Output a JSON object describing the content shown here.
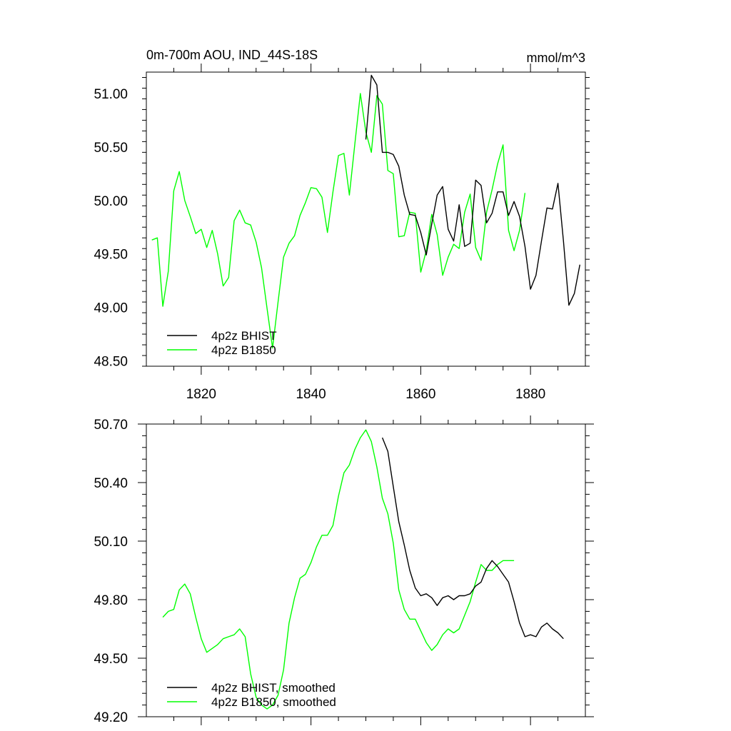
{
  "chart_data": [
    {
      "type": "line",
      "title_left": "0m-700m AOU, IND_44S-18S",
      "title_right": "mmol/m^3",
      "xlim": [
        1810,
        1890
      ],
      "ylim": [
        48.45,
        51.2
      ],
      "x_ticks": [
        1820,
        1840,
        1860,
        1880
      ],
      "x_tick_labels": [
        "1820",
        "1840",
        "1860",
        "1880"
      ],
      "y_ticks": [
        48.5,
        49.0,
        49.5,
        50.0,
        50.5,
        51.0
      ],
      "y_tick_labels": [
        "48.50",
        "49.00",
        "49.50",
        "50.00",
        "50.50",
        "51.00"
      ],
      "legend_position": "bottom-left",
      "series": [
        {
          "name": "4p2z BHIST",
          "color": "#000000",
          "x": [
            1850,
            1851,
            1852,
            1853,
            1854,
            1855,
            1856,
            1857,
            1858,
            1859,
            1860,
            1861,
            1862,
            1863,
            1864,
            1865,
            1866,
            1867,
            1868,
            1869,
            1870,
            1871,
            1872,
            1873,
            1874,
            1875,
            1876,
            1877,
            1878,
            1879,
            1880,
            1881,
            1882,
            1883,
            1884,
            1885,
            1886,
            1887,
            1888,
            1889
          ],
          "values": [
            50.57,
            51.17,
            51.08,
            50.45,
            50.45,
            50.43,
            50.32,
            50.05,
            49.87,
            49.86,
            49.7,
            49.49,
            49.78,
            50.05,
            50.13,
            49.73,
            49.62,
            49.96,
            49.57,
            49.6,
            50.19,
            50.14,
            49.79,
            49.88,
            50.08,
            50.08,
            49.86,
            49.99,
            49.85,
            49.57,
            49.17,
            49.3,
            49.62,
            49.93,
            49.92,
            50.16,
            49.62,
            49.02,
            49.13,
            49.4
          ]
        },
        {
          "name": "4p2z B1850",
          "color": "#00ff00",
          "x": [
            1811,
            1812,
            1813,
            1814,
            1815,
            1816,
            1817,
            1818,
            1819,
            1820,
            1821,
            1822,
            1823,
            1824,
            1825,
            1826,
            1827,
            1828,
            1829,
            1830,
            1831,
            1832,
            1833,
            1834,
            1835,
            1836,
            1837,
            1838,
            1839,
            1840,
            1841,
            1842,
            1843,
            1844,
            1845,
            1846,
            1847,
            1848,
            1849,
            1850,
            1851,
            1852,
            1853,
            1854,
            1855,
            1856,
            1857,
            1858,
            1859,
            1860,
            1861,
            1862,
            1863,
            1864,
            1865,
            1866,
            1867,
            1868,
            1869,
            1870,
            1871,
            1872,
            1873,
            1874,
            1875,
            1876,
            1877,
            1878,
            1879
          ],
          "values": [
            49.63,
            49.65,
            49.01,
            49.34,
            50.09,
            50.27,
            50.0,
            49.85,
            49.69,
            49.73,
            49.56,
            49.72,
            49.5,
            49.2,
            49.28,
            49.81,
            49.91,
            49.79,
            49.77,
            49.61,
            49.37,
            48.99,
            48.62,
            49.05,
            49.47,
            49.6,
            49.67,
            49.86,
            49.98,
            50.12,
            50.11,
            50.03,
            49.7,
            50.08,
            50.42,
            50.44,
            50.05,
            50.53,
            51.0,
            50.64,
            50.45,
            50.98,
            50.9,
            50.28,
            50.25,
            49.66,
            49.67,
            49.89,
            49.88,
            49.33,
            49.53,
            49.87,
            49.68,
            49.3,
            49.47,
            49.59,
            49.55,
            49.89,
            50.06,
            49.56,
            49.44,
            49.89,
            50.1,
            50.34,
            50.52,
            49.72,
            49.53,
            49.72,
            50.07
          ]
        }
      ]
    },
    {
      "type": "line",
      "xlim": [
        1810,
        1890
      ],
      "ylim": [
        49.2,
        50.7
      ],
      "x_ticks": [
        1820,
        1840,
        1860,
        1880
      ],
      "y_ticks": [
        49.2,
        49.5,
        49.8,
        50.1,
        50.4,
        50.7
      ],
      "y_tick_labels": [
        "49.20",
        "49.50",
        "49.80",
        "50.10",
        "50.40",
        "50.70"
      ],
      "legend_position": "bottom-left",
      "series": [
        {
          "name": "4p2z BHIST, smoothed",
          "color": "#000000",
          "x": [
            1853,
            1854,
            1855,
            1856,
            1857,
            1858,
            1859,
            1860,
            1861,
            1862,
            1863,
            1864,
            1865,
            1866,
            1867,
            1868,
            1869,
            1870,
            1871,
            1872,
            1873,
            1874,
            1875,
            1876,
            1877,
            1878,
            1879,
            1880,
            1881,
            1882,
            1883,
            1884,
            1885,
            1886
          ],
          "values": [
            50.63,
            50.56,
            50.38,
            50.2,
            50.08,
            49.95,
            49.86,
            49.82,
            49.83,
            49.81,
            49.77,
            49.81,
            49.82,
            49.8,
            49.82,
            49.82,
            49.83,
            49.87,
            49.89,
            49.96,
            50.0,
            49.97,
            49.93,
            49.89,
            49.79,
            49.68,
            49.61,
            49.62,
            49.61,
            49.66,
            49.68,
            49.65,
            49.63,
            49.6
          ]
        },
        {
          "name": "4p2z B1850, smoothed",
          "color": "#00ff00",
          "x": [
            1813,
            1814,
            1815,
            1816,
            1817,
            1818,
            1819,
            1820,
            1821,
            1822,
            1823,
            1824,
            1825,
            1826,
            1827,
            1828,
            1829,
            1830,
            1831,
            1832,
            1833,
            1834,
            1835,
            1836,
            1837,
            1838,
            1839,
            1840,
            1841,
            1842,
            1843,
            1844,
            1845,
            1846,
            1847,
            1848,
            1849,
            1850,
            1851,
            1852,
            1853,
            1854,
            1855,
            1856,
            1857,
            1858,
            1859,
            1860,
            1861,
            1862,
            1863,
            1864,
            1865,
            1866,
            1867,
            1868,
            1869,
            1870,
            1871,
            1872,
            1873,
            1874,
            1875,
            1876,
            1877
          ],
          "values": [
            49.71,
            49.74,
            49.75,
            49.85,
            49.88,
            49.83,
            49.71,
            49.6,
            49.53,
            49.55,
            49.57,
            49.6,
            49.61,
            49.62,
            49.65,
            49.61,
            49.42,
            49.3,
            49.26,
            49.24,
            49.26,
            49.31,
            49.44,
            49.68,
            49.81,
            49.91,
            49.93,
            49.99,
            50.07,
            50.13,
            50.13,
            50.18,
            50.33,
            50.45,
            50.49,
            50.57,
            50.63,
            50.67,
            50.61,
            50.48,
            50.32,
            50.24,
            50.09,
            49.85,
            49.75,
            49.7,
            49.7,
            49.64,
            49.58,
            49.54,
            49.57,
            49.62,
            49.65,
            49.63,
            49.65,
            49.72,
            49.79,
            49.89,
            49.98,
            49.95,
            49.95,
            49.98,
            50.0,
            50.0,
            50.0
          ]
        }
      ]
    }
  ]
}
